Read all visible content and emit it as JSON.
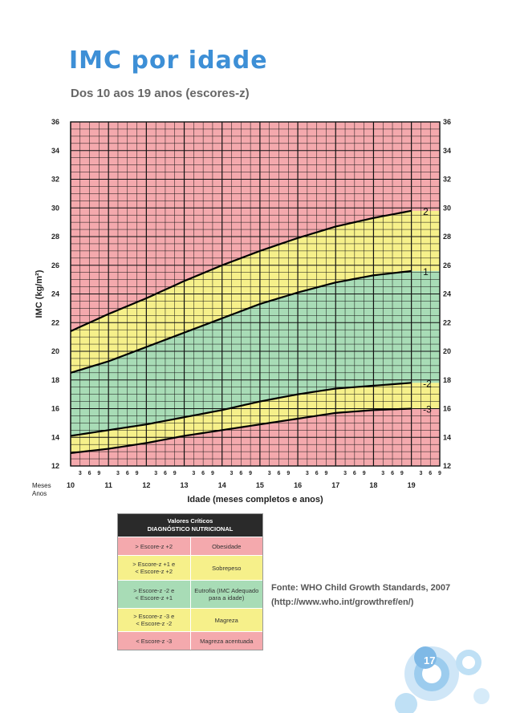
{
  "page": {
    "title": "IMC por idade",
    "subtitle": "Dos 10 aos 19 anos (escores-z)",
    "source_line1": "Fonte: WHO Child Growth Standards, 2007",
    "source_line2": "(http://www.who.int/growthref/en/)",
    "page_number": "17"
  },
  "chart_data": {
    "type": "line",
    "xlabel": "Idade (meses completos e anos)",
    "ylabel": "IMC (kg/m²)",
    "xlim": [
      10,
      19.5
    ],
    "ylim": [
      12,
      36
    ],
    "y_ticks": [
      12,
      14,
      16,
      18,
      20,
      22,
      24,
      26,
      28,
      30,
      32,
      34,
      36
    ],
    "x_year_ticks": [
      "10",
      "11",
      "12",
      "13",
      "14",
      "15",
      "16",
      "17",
      "18",
      "19"
    ],
    "x_month_ticks": [
      "3",
      "6",
      "9"
    ],
    "row_label_months": "Meses",
    "row_label_years": "Anos",
    "x": [
      10,
      11,
      12,
      13,
      14,
      15,
      16,
      17,
      18,
      19
    ],
    "series": [
      {
        "name": "2",
        "values": [
          21.4,
          22.6,
          23.7,
          24.9,
          26.0,
          27.0,
          27.9,
          28.7,
          29.3,
          29.8
        ]
      },
      {
        "name": "1",
        "values": [
          18.5,
          19.3,
          20.3,
          21.3,
          22.3,
          23.3,
          24.1,
          24.8,
          25.3,
          25.6
        ]
      },
      {
        "name": "-2",
        "values": [
          14.1,
          14.5,
          14.9,
          15.4,
          15.9,
          16.5,
          17.0,
          17.4,
          17.6,
          17.8
        ]
      },
      {
        "name": "-3",
        "values": [
          12.9,
          13.2,
          13.6,
          14.1,
          14.5,
          14.9,
          15.3,
          15.7,
          15.9,
          16.0
        ]
      }
    ],
    "colors": {
      "obesity": "#f4a9ad",
      "overweight": "#f6f08a",
      "normal": "#a8dcb6",
      "thinness": "#f6f08a",
      "severe_thinness": "#f4a9ad",
      "title": "#3d8fd6"
    }
  },
  "legend": {
    "header_line1": "Valores Críticos",
    "header_line2": "DIAGNÓSTICO NUTRICIONAL",
    "rows": [
      {
        "range": "> Escore-z +2",
        "label": "Obesidade",
        "color": "#f4a9ad"
      },
      {
        "range": "> Escore-z +1 e\n< Escore-z +2",
        "label": "Sobrepeso",
        "color": "#f6f08a"
      },
      {
        "range": "> Escore-z -2 e\n< Escore-z +1",
        "label": "Eutrofia (IMC Adequado\npara a idade)",
        "color": "#a8dcb6"
      },
      {
        "range": "> Escore-z -3 e\n< Escore-z -2",
        "label": "Magreza",
        "color": "#f6f08a"
      },
      {
        "range": "< Escore-z -3",
        "label": "Magreza acentuada",
        "color": "#f4a9ad"
      }
    ]
  }
}
